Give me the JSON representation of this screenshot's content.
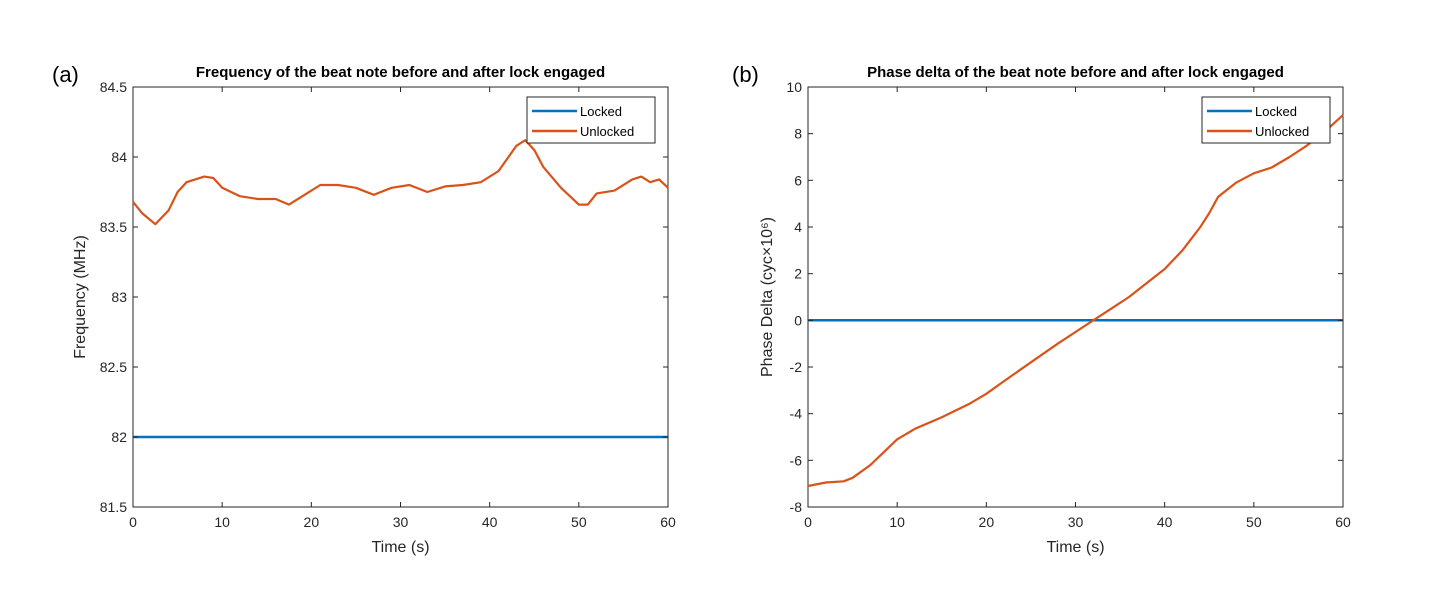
{
  "chart_data": [
    {
      "type": "line",
      "panel_label": "(a)",
      "title": "Frequency of the beat note before and after lock engaged",
      "xlabel": "Time (s)",
      "ylabel": "Frequency (MHz)",
      "xlim": [
        0,
        60
      ],
      "ylim": [
        81.5,
        84.5
      ],
      "xticks": [
        0,
        10,
        20,
        30,
        40,
        50,
        60
      ],
      "yticks": [
        81.5,
        82,
        82.5,
        83,
        83.5,
        84,
        84.5
      ],
      "ytick_labels": [
        "81.5",
        "82",
        "82.5",
        "83",
        "83.5",
        "84",
        "84.5"
      ],
      "grid": false,
      "legend_position": "top-right",
      "series": [
        {
          "name": "Locked",
          "color": "#0072BD",
          "x": [
            0,
            60
          ],
          "y": [
            82,
            82
          ]
        },
        {
          "name": "Unlocked",
          "color": "#D95319",
          "x": [
            0,
            1,
            2.5,
            4,
            5,
            6,
            8,
            9,
            10,
            12,
            14,
            16,
            17.5,
            19,
            21,
            23,
            25,
            27,
            29,
            31,
            33,
            35,
            37,
            39,
            41,
            43,
            44,
            45,
            46,
            48,
            50,
            51,
            52,
            54,
            56,
            57,
            58,
            59,
            60
          ],
          "y": [
            83.68,
            83.6,
            83.52,
            83.62,
            83.75,
            83.82,
            83.86,
            83.85,
            83.78,
            83.72,
            83.7,
            83.7,
            83.66,
            83.72,
            83.8,
            83.8,
            83.78,
            83.73,
            83.78,
            83.8,
            83.75,
            83.79,
            83.8,
            83.82,
            83.9,
            84.08,
            84.12,
            84.05,
            83.93,
            83.78,
            83.66,
            83.66,
            83.74,
            83.76,
            83.84,
            83.86,
            83.82,
            83.84,
            83.78
          ]
        }
      ]
    },
    {
      "type": "line",
      "panel_label": "(b)",
      "title": "Phase delta of the beat note before and after lock engaged",
      "xlabel": "Time (s)",
      "ylabel": "Phase Delta (cyc×10⁶)",
      "xlim": [
        0,
        60
      ],
      "ylim": [
        -8,
        10
      ],
      "xticks": [
        0,
        10,
        20,
        30,
        40,
        50,
        60
      ],
      "yticks": [
        -8,
        -6,
        -4,
        -2,
        0,
        2,
        4,
        6,
        8,
        10
      ],
      "ytick_labels": [
        "-8",
        "-6",
        "-4",
        "-2",
        "0",
        "2",
        "4",
        "6",
        "8",
        "10"
      ],
      "grid": false,
      "legend_position": "top-right",
      "series": [
        {
          "name": "Locked",
          "color": "#0072BD",
          "x": [
            0,
            60
          ],
          "y": [
            0,
            0
          ]
        },
        {
          "name": "Unlocked",
          "color": "#D95319",
          "x": [
            0,
            2,
            4,
            5,
            7,
            10,
            12,
            15,
            18,
            20,
            22,
            25,
            28,
            30,
            32,
            34,
            36,
            38,
            40,
            42,
            44,
            45,
            46,
            48,
            50,
            52,
            54,
            56,
            58,
            60
          ],
          "y": [
            -7.1,
            -6.95,
            -6.9,
            -6.75,
            -6.2,
            -5.1,
            -4.65,
            -4.15,
            -3.6,
            -3.15,
            -2.6,
            -1.8,
            -1.0,
            -0.5,
            0.0,
            0.5,
            1.0,
            1.6,
            2.2,
            3.0,
            4.0,
            4.6,
            5.3,
            5.9,
            6.3,
            6.55,
            7.0,
            7.5,
            8.1,
            8.8
          ]
        }
      ]
    }
  ]
}
